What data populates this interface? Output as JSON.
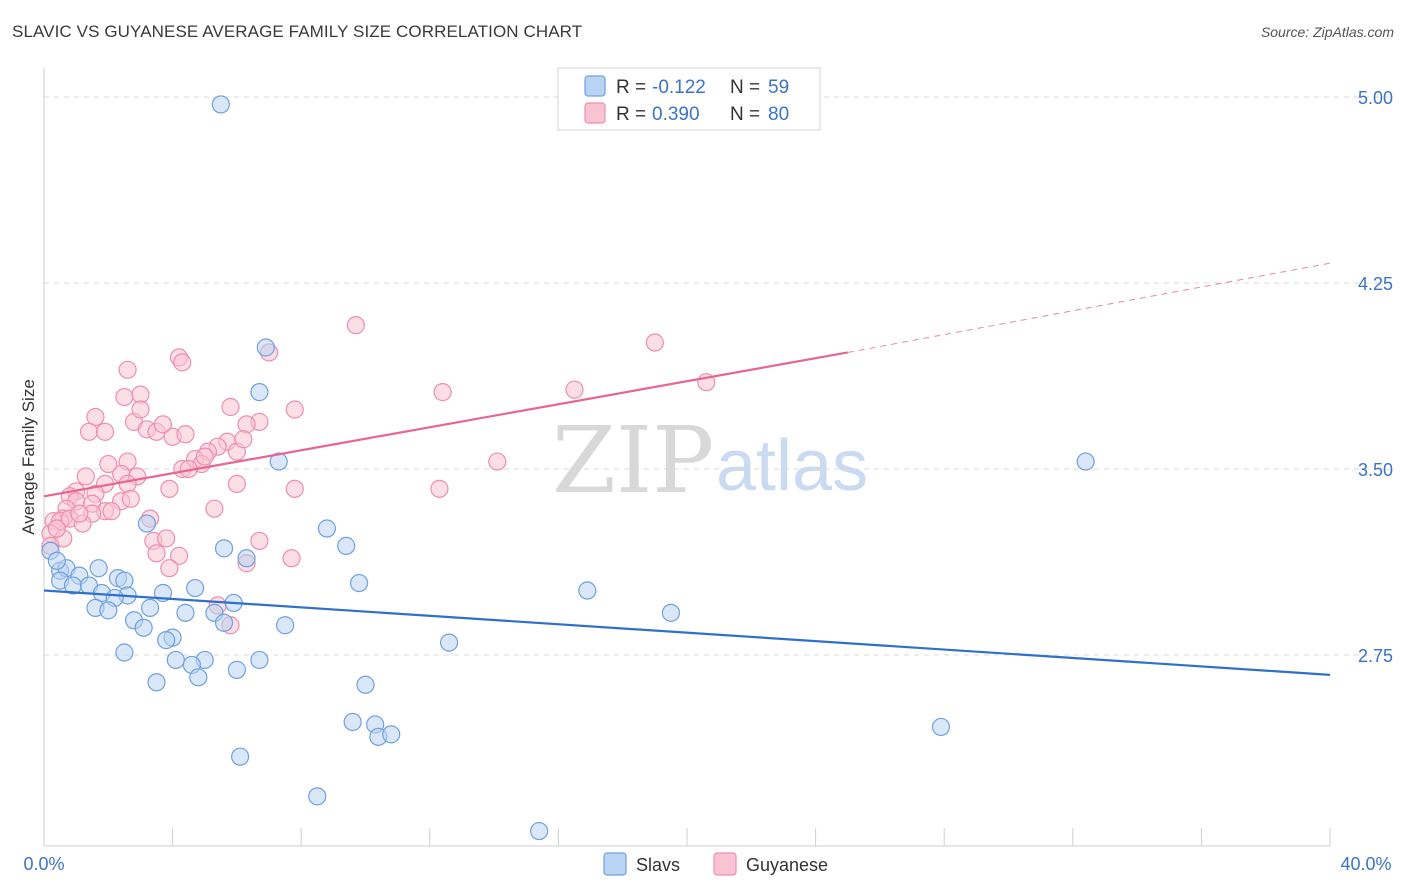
{
  "title": "SLAVIC VS GUYANESE AVERAGE FAMILY SIZE CORRELATION CHART",
  "source": "Source: ZipAtlas.com",
  "watermark": {
    "zip": "ZIP",
    "atlas": "atlas"
  },
  "colors": {
    "slavs_fill": "#b9d3f3",
    "slavs_stroke": "#6fa1de",
    "slavs_line": "#2f6fcd",
    "guyanese_fill": "#f9c3d4",
    "guyanese_stroke": "#ec8fab",
    "guyanese_line": "#e86590",
    "tick": "#3b73c8",
    "grid": "#d9d9d9"
  },
  "legend": {
    "rows": [
      {
        "r_label": "R = ",
        "r_value": "-0.122",
        "n_label": "N = ",
        "n_value": "59"
      },
      {
        "r_label": "R = ",
        "r_value": "0.390",
        "n_label": "N = ",
        "n_value": "80"
      }
    ]
  },
  "chart_data": {
    "type": "scatter",
    "title": "SLAVIC VS GUYANESE AVERAGE FAMILY SIZE CORRELATION CHART",
    "xlabel": "",
    "ylabel": "Average Family Size",
    "xlim": [
      0,
      40
    ],
    "ylim": [
      2.0,
      5.1
    ],
    "x_tick_labels": [
      "0.0%",
      "40.0%"
    ],
    "y_ticks": [
      2.75,
      3.5,
      4.25,
      5.0
    ],
    "y_tick_labels": [
      "2.75",
      "3.50",
      "4.25",
      "5.00"
    ],
    "series": [
      {
        "name": "Slavs",
        "R": -0.122,
        "N": 59,
        "trend": {
          "x0": 0,
          "y0": 3.01,
          "x1": 40,
          "y1": 2.67
        },
        "points": [
          [
            5.5,
            4.97
          ],
          [
            6.9,
            3.99
          ],
          [
            6.7,
            3.81
          ],
          [
            7.3,
            3.53
          ],
          [
            32.4,
            3.53
          ],
          [
            3.2,
            3.28
          ],
          [
            8.8,
            3.26
          ],
          [
            9.4,
            3.19
          ],
          [
            5.6,
            3.18
          ],
          [
            6.3,
            3.14
          ],
          [
            0.2,
            3.17
          ],
          [
            0.5,
            3.09
          ],
          [
            0.7,
            3.1
          ],
          [
            1.7,
            3.1
          ],
          [
            1.1,
            3.07
          ],
          [
            0.5,
            3.05
          ],
          [
            0.9,
            3.03
          ],
          [
            1.4,
            3.03
          ],
          [
            2.3,
            3.06
          ],
          [
            2.5,
            3.05
          ],
          [
            1.8,
            3.0
          ],
          [
            2.6,
            2.99
          ],
          [
            2.2,
            2.98
          ],
          [
            3.7,
            3.0
          ],
          [
            4.7,
            3.02
          ],
          [
            9.8,
            3.04
          ],
          [
            16.9,
            3.01
          ],
          [
            5.9,
            2.96
          ],
          [
            1.6,
            2.94
          ],
          [
            2.0,
            2.93
          ],
          [
            3.3,
            2.94
          ],
          [
            4.4,
            2.92
          ],
          [
            5.3,
            2.92
          ],
          [
            5.6,
            2.88
          ],
          [
            7.5,
            2.87
          ],
          [
            19.5,
            2.92
          ],
          [
            2.8,
            2.89
          ],
          [
            3.1,
            2.86
          ],
          [
            4.0,
            2.82
          ],
          [
            3.8,
            2.81
          ],
          [
            2.5,
            2.76
          ],
          [
            4.1,
            2.73
          ],
          [
            5.0,
            2.73
          ],
          [
            12.6,
            2.8
          ],
          [
            4.6,
            2.71
          ],
          [
            6.7,
            2.73
          ],
          [
            6.0,
            2.69
          ],
          [
            4.8,
            2.66
          ],
          [
            3.5,
            2.64
          ],
          [
            10.0,
            2.63
          ],
          [
            9.6,
            2.48
          ],
          [
            10.3,
            2.47
          ],
          [
            10.4,
            2.42
          ],
          [
            10.8,
            2.43
          ],
          [
            27.9,
            2.46
          ],
          [
            6.1,
            2.34
          ],
          [
            8.5,
            2.18
          ],
          [
            15.4,
            2.04
          ],
          [
            0.4,
            3.13
          ]
        ]
      },
      {
        "name": "Guyanese",
        "R": 0.39,
        "N": 80,
        "trend": {
          "x0": 0,
          "y0": 3.39,
          "x1": 25,
          "y1": 3.97
        },
        "trend_dashed": {
          "x0": 25,
          "y0": 3.97,
          "x1": 40,
          "y1": 4.33
        },
        "points": [
          [
            9.7,
            4.08
          ],
          [
            19.0,
            4.01
          ],
          [
            7.0,
            3.97
          ],
          [
            4.2,
            3.95
          ],
          [
            4.3,
            3.93
          ],
          [
            2.6,
            3.9
          ],
          [
            3.0,
            3.8
          ],
          [
            2.5,
            3.79
          ],
          [
            12.4,
            3.81
          ],
          [
            16.5,
            3.82
          ],
          [
            20.6,
            3.85
          ],
          [
            5.8,
            3.75
          ],
          [
            7.8,
            3.74
          ],
          [
            1.6,
            3.71
          ],
          [
            2.8,
            3.69
          ],
          [
            6.7,
            3.69
          ],
          [
            6.3,
            3.68
          ],
          [
            1.4,
            3.65
          ],
          [
            1.9,
            3.65
          ],
          [
            3.2,
            3.66
          ],
          [
            3.5,
            3.65
          ],
          [
            4.0,
            3.63
          ],
          [
            4.4,
            3.64
          ],
          [
            5.7,
            3.61
          ],
          [
            5.4,
            3.59
          ],
          [
            5.1,
            3.57
          ],
          [
            6.0,
            3.57
          ],
          [
            4.7,
            3.54
          ],
          [
            2.6,
            3.53
          ],
          [
            4.9,
            3.52
          ],
          [
            14.1,
            3.53
          ],
          [
            4.3,
            3.5
          ],
          [
            1.3,
            3.47
          ],
          [
            2.4,
            3.48
          ],
          [
            2.9,
            3.47
          ],
          [
            1.9,
            3.44
          ],
          [
            2.6,
            3.44
          ],
          [
            6.0,
            3.44
          ],
          [
            3.9,
            3.42
          ],
          [
            7.8,
            3.42
          ],
          [
            12.3,
            3.42
          ],
          [
            1.0,
            3.41
          ],
          [
            1.6,
            3.4
          ],
          [
            0.8,
            3.39
          ],
          [
            1.0,
            3.37
          ],
          [
            2.4,
            3.37
          ],
          [
            2.7,
            3.38
          ],
          [
            1.5,
            3.36
          ],
          [
            0.7,
            3.34
          ],
          [
            1.9,
            3.33
          ],
          [
            1.5,
            3.32
          ],
          [
            0.6,
            3.3
          ],
          [
            5.3,
            3.34
          ],
          [
            3.3,
            3.3
          ],
          [
            0.3,
            3.29
          ],
          [
            0.5,
            3.29
          ],
          [
            0.8,
            3.3
          ],
          [
            1.2,
            3.28
          ],
          [
            0.2,
            3.24
          ],
          [
            0.6,
            3.22
          ],
          [
            3.4,
            3.21
          ],
          [
            3.8,
            3.22
          ],
          [
            6.7,
            3.21
          ],
          [
            0.2,
            3.19
          ],
          [
            3.5,
            3.16
          ],
          [
            4.2,
            3.15
          ],
          [
            7.7,
            3.14
          ],
          [
            6.3,
            3.12
          ],
          [
            5.4,
            2.95
          ],
          [
            5.8,
            2.87
          ],
          [
            3.9,
            3.1
          ],
          [
            0.4,
            3.26
          ],
          [
            2.1,
            3.33
          ],
          [
            1.1,
            3.32
          ],
          [
            3.7,
            3.68
          ],
          [
            5.0,
            3.55
          ],
          [
            4.5,
            3.5
          ],
          [
            6.2,
            3.62
          ],
          [
            3.0,
            3.74
          ],
          [
            2.0,
            3.52
          ]
        ]
      }
    ],
    "legend": [
      "Slavs",
      "Guyanese"
    ],
    "grid": true
  }
}
